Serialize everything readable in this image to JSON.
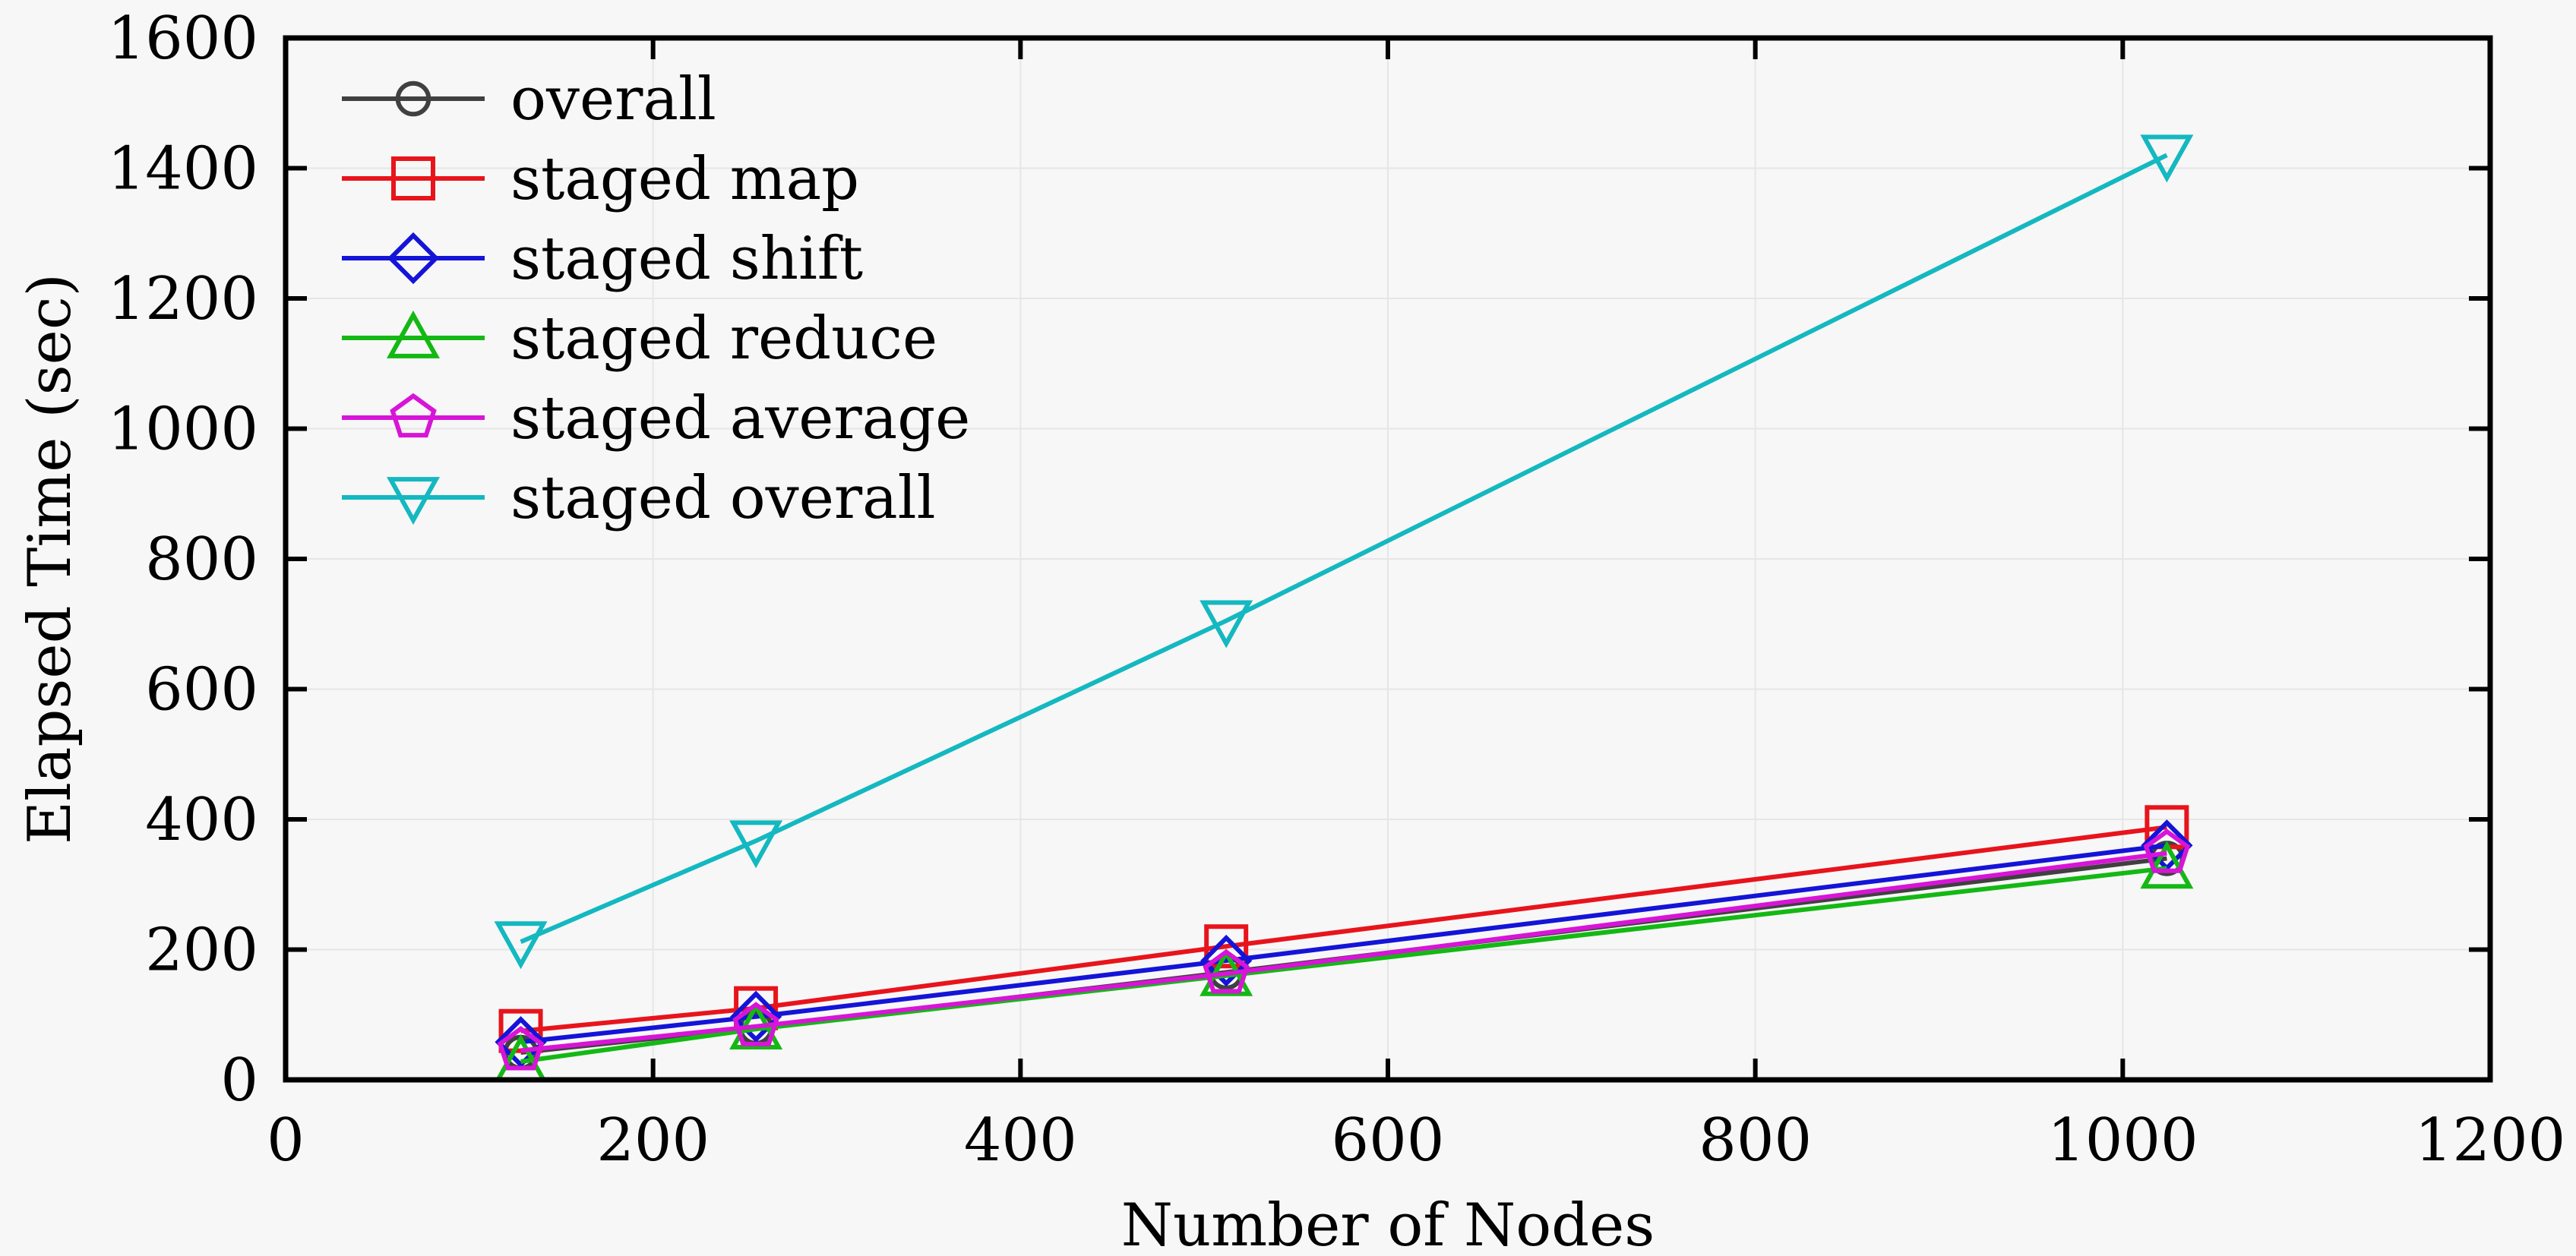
{
  "chart_data": {
    "type": "line",
    "title": "",
    "xlabel": "Number of Nodes",
    "ylabel": "Elapsed Time (sec)",
    "xlim": [
      0,
      1200
    ],
    "ylim": [
      0,
      1600
    ],
    "xticks": [
      0,
      200,
      400,
      600,
      800,
      1000,
      1200
    ],
    "yticks": [
      0,
      200,
      400,
      600,
      800,
      1000,
      1200,
      1400,
      1600
    ],
    "grid": true,
    "legend_position": "top-left",
    "x": [
      128,
      256,
      512,
      1024
    ],
    "series": [
      {
        "name": "overall",
        "color": "#404040",
        "marker": "circle",
        "values": [
          42,
          80,
          165,
          340
        ]
      },
      {
        "name": "staged map",
        "color": "#e8141c",
        "marker": "square",
        "values": [
          75,
          110,
          205,
          388
        ]
      },
      {
        "name": "staged shift",
        "color": "#1414d8",
        "marker": "diamond",
        "values": [
          58,
          97,
          183,
          360
        ]
      },
      {
        "name": "staged reduce",
        "color": "#14b814",
        "marker": "triangle-up",
        "values": [
          28,
          78,
          160,
          325
        ]
      },
      {
        "name": "staged average",
        "color": "#d814d8",
        "marker": "pentagon",
        "values": [
          45,
          82,
          163,
          348
        ]
      },
      {
        "name": "staged overall",
        "color": "#14b8c0",
        "marker": "triangle-down",
        "values": [
          212,
          367,
          705,
          1420
        ]
      }
    ]
  }
}
